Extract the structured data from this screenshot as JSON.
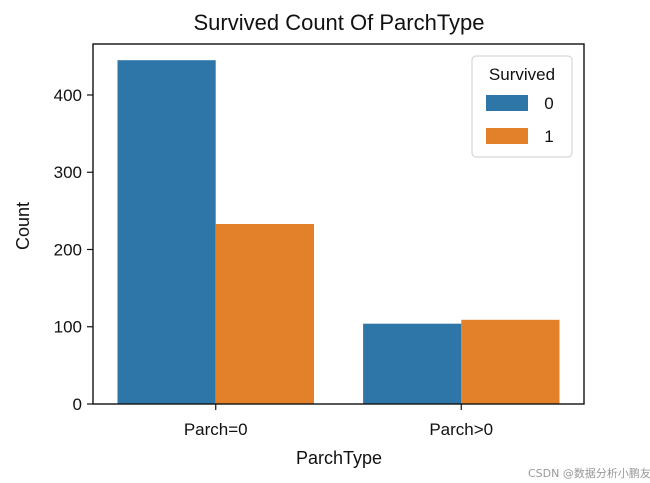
{
  "chart_data": {
    "type": "bar",
    "title": "Survived Count Of ParchType",
    "xlabel": "ParchType",
    "ylabel": "Count",
    "categories": [
      "Parch=0",
      "Parch>0"
    ],
    "series": [
      {
        "name": "0",
        "values": [
          445,
          104
        ],
        "color": "#2e75a8"
      },
      {
        "name": "1",
        "values": [
          233,
          109
        ],
        "color": "#e3812b"
      }
    ],
    "ylim": [
      0,
      466
    ],
    "yticks": [
      0,
      100,
      200,
      300,
      400
    ],
    "legend": {
      "title": "Survived",
      "placement": "top-right"
    },
    "grid": false
  },
  "watermark": "CSDN @数据分析小鹏友"
}
